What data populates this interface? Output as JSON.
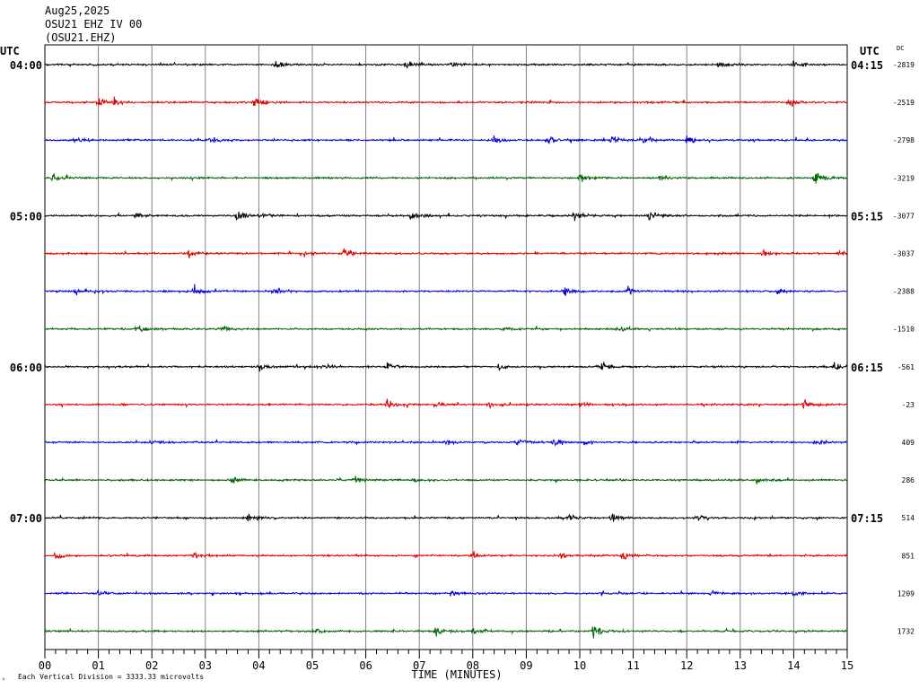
{
  "header": {
    "date": "Aug25,2025",
    "station": "OSU21 EHZ IV 00",
    "channel": "(OSU21.EHZ)"
  },
  "labels": {
    "utc_left": "UTC",
    "utc_right": "UTC",
    "dc": "DC",
    "footnote": "Each Vertical Division = 3333.33 microvolts",
    "corner": "▵"
  },
  "colors": [
    "#000000",
    "#e00000",
    "#0000d0",
    "#006400"
  ],
  "chart_data": {
    "type": "line",
    "title": "",
    "xlabel": "TIME (MINUTES)",
    "ylabel": "",
    "xlim": [
      0,
      15
    ],
    "x_ticks": [
      "00",
      "01",
      "02",
      "03",
      "04",
      "05",
      "06",
      "07",
      "08",
      "09",
      "10",
      "11",
      "12",
      "13",
      "14",
      "15"
    ],
    "grid": true,
    "left_time_labels": [
      "04:00",
      "05:00",
      "06:00",
      "07:00"
    ],
    "right_time_labels": [
      "04:15",
      "05:15",
      "06:15",
      "07:15"
    ],
    "series": [
      {
        "dc": "-2819",
        "events": [
          [
            4.3,
            1.0
          ],
          [
            6.75,
            1.0
          ],
          [
            7.6,
            0.6
          ],
          [
            12.6,
            0.9
          ],
          [
            14.0,
            0.8
          ]
        ]
      },
      {
        "dc": "-2519",
        "events": [
          [
            1.0,
            1.2
          ],
          [
            1.3,
            0.8
          ],
          [
            3.9,
            1.3
          ],
          [
            13.9,
            1.0
          ]
        ]
      },
      {
        "dc": "-2798",
        "events": [
          [
            0.55,
            0.7
          ],
          [
            3.1,
            0.7
          ],
          [
            8.4,
            1.0
          ],
          [
            9.4,
            1.0
          ],
          [
            10.6,
            0.7
          ],
          [
            11.2,
            0.8
          ],
          [
            12.0,
            0.9
          ]
        ]
      },
      {
        "dc": "-3219",
        "events": [
          [
            0.15,
            1.0
          ],
          [
            10.0,
            1.0
          ],
          [
            11.5,
            0.6
          ],
          [
            14.4,
            1.1
          ]
        ]
      },
      {
        "dc": "-3077",
        "events": [
          [
            1.7,
            0.6
          ],
          [
            3.6,
            0.9
          ],
          [
            4.0,
            0.6
          ],
          [
            6.85,
            0.9
          ],
          [
            9.9,
            0.9
          ],
          [
            11.3,
            1.2
          ]
        ]
      },
      {
        "dc": "-3037",
        "events": [
          [
            2.7,
            1.0
          ],
          [
            4.8,
            0.7
          ],
          [
            5.6,
            1.3
          ],
          [
            13.4,
            0.7
          ],
          [
            14.85,
            0.8
          ]
        ]
      },
      {
        "dc": "-2388",
        "events": [
          [
            0.55,
            0.8
          ],
          [
            2.8,
            1.0
          ],
          [
            4.3,
            0.8
          ],
          [
            9.7,
            1.1
          ],
          [
            10.9,
            0.7
          ],
          [
            13.7,
            0.8
          ]
        ]
      },
      {
        "dc": "-1510",
        "events": [
          [
            1.7,
            1.0
          ],
          [
            3.3,
            0.5
          ],
          [
            8.6,
            0.5
          ],
          [
            10.7,
            0.5
          ]
        ]
      },
      {
        "dc": "-561",
        "events": [
          [
            4.0,
            0.6
          ],
          [
            5.2,
            0.7
          ],
          [
            6.4,
            0.8
          ],
          [
            8.5,
            0.6
          ],
          [
            10.4,
            0.8
          ],
          [
            14.75,
            1.0
          ]
        ]
      },
      {
        "dc": "-23",
        "events": [
          [
            6.4,
            1.1
          ],
          [
            7.3,
            0.8
          ],
          [
            8.3,
            0.7
          ],
          [
            10.0,
            0.6
          ],
          [
            14.2,
            1.0
          ]
        ]
      },
      {
        "dc": "409",
        "events": [
          [
            2.0,
            0.8
          ],
          [
            7.5,
            0.7
          ],
          [
            8.8,
            0.7
          ],
          [
            9.5,
            0.8
          ],
          [
            10.1,
            0.7
          ],
          [
            14.4,
            0.5
          ]
        ]
      },
      {
        "dc": "286",
        "events": [
          [
            3.5,
            0.8
          ],
          [
            5.8,
            0.6
          ],
          [
            6.9,
            0.5
          ],
          [
            13.3,
            0.7
          ]
        ]
      },
      {
        "dc": "514",
        "events": [
          [
            3.8,
            0.8
          ],
          [
            9.8,
            0.7
          ],
          [
            10.6,
            1.0
          ],
          [
            12.2,
            0.9
          ]
        ]
      },
      {
        "dc": "851",
        "events": [
          [
            0.2,
            0.8
          ],
          [
            2.8,
            0.6
          ],
          [
            8.0,
            0.8
          ],
          [
            9.65,
            0.9
          ],
          [
            10.8,
            0.8
          ]
        ]
      },
      {
        "dc": "1209",
        "events": [
          [
            1.0,
            0.6
          ],
          [
            7.6,
            0.6
          ],
          [
            12.45,
            0.6
          ],
          [
            14.0,
            0.6
          ]
        ]
      },
      {
        "dc": "1732",
        "events": [
          [
            5.0,
            0.5
          ],
          [
            7.3,
            1.2
          ],
          [
            8.0,
            0.8
          ],
          [
            10.25,
            1.2
          ]
        ]
      }
    ]
  }
}
